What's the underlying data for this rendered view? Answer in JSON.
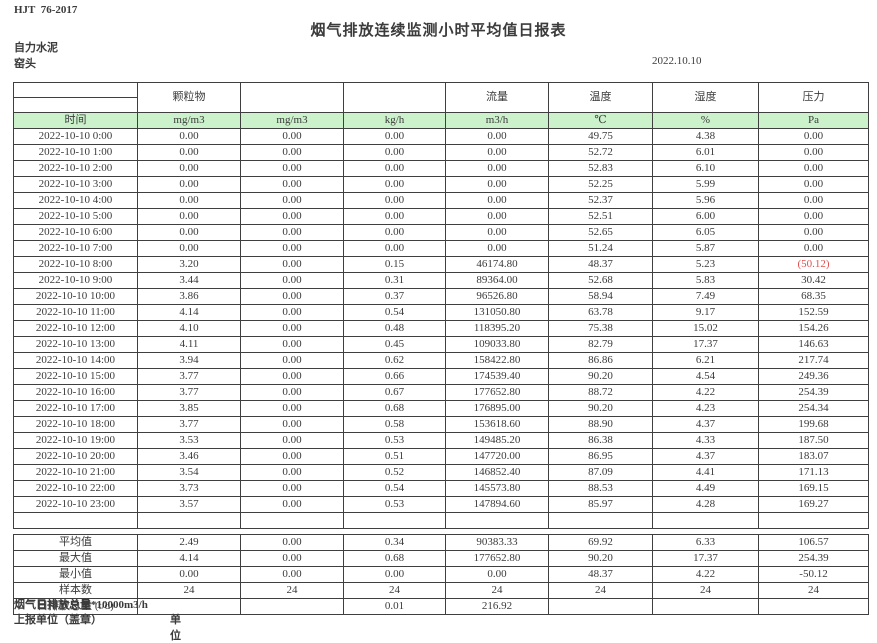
{
  "header": {
    "doc_code": "HJT  76-2017",
    "title": "烟气排放连续监测小时平均值日报表",
    "company": "自力水泥",
    "station": "窑头",
    "date": "2022.10.10"
  },
  "table": {
    "group_headers": {
      "particulate": "颗粒物",
      "flow": "流量",
      "temperature": "温度",
      "humidity": "湿度",
      "pressure": "压力"
    },
    "unit_row": [
      "时间",
      "mg/m3",
      "mg/m3",
      "kg/h",
      "m3/h",
      "℃",
      "%",
      "Pa"
    ],
    "rows": [
      [
        "2022-10-10 0:00",
        "0.00",
        "0.00",
        "0.00",
        "0.00",
        "49.75",
        "4.38",
        "0.00"
      ],
      [
        "2022-10-10 1:00",
        "0.00",
        "0.00",
        "0.00",
        "0.00",
        "52.72",
        "6.01",
        "0.00"
      ],
      [
        "2022-10-10 2:00",
        "0.00",
        "0.00",
        "0.00",
        "0.00",
        "52.83",
        "6.10",
        "0.00"
      ],
      [
        "2022-10-10 3:00",
        "0.00",
        "0.00",
        "0.00",
        "0.00",
        "52.25",
        "5.99",
        "0.00"
      ],
      [
        "2022-10-10 4:00",
        "0.00",
        "0.00",
        "0.00",
        "0.00",
        "52.37",
        "5.96",
        "0.00"
      ],
      [
        "2022-10-10 5:00",
        "0.00",
        "0.00",
        "0.00",
        "0.00",
        "52.51",
        "6.00",
        "0.00"
      ],
      [
        "2022-10-10 6:00",
        "0.00",
        "0.00",
        "0.00",
        "0.00",
        "52.65",
        "6.05",
        "0.00"
      ],
      [
        "2022-10-10 7:00",
        "0.00",
        "0.00",
        "0.00",
        "0.00",
        "51.24",
        "5.87",
        "0.00"
      ],
      [
        "2022-10-10 8:00",
        "3.20",
        "0.00",
        "0.15",
        "46174.80",
        "48.37",
        "5.23",
        "(50.12)"
      ],
      [
        "2022-10-10 9:00",
        "3.44",
        "0.00",
        "0.31",
        "89364.00",
        "52.68",
        "5.83",
        "30.42"
      ],
      [
        "2022-10-10 10:00",
        "3.86",
        "0.00",
        "0.37",
        "96526.80",
        "58.94",
        "7.49",
        "68.35"
      ],
      [
        "2022-10-10 11:00",
        "4.14",
        "0.00",
        "0.54",
        "131050.80",
        "63.78",
        "9.17",
        "152.59"
      ],
      [
        "2022-10-10 12:00",
        "4.10",
        "0.00",
        "0.48",
        "118395.20",
        "75.38",
        "15.02",
        "154.26"
      ],
      [
        "2022-10-10 13:00",
        "4.11",
        "0.00",
        "0.45",
        "109033.80",
        "82.79",
        "17.37",
        "146.63"
      ],
      [
        "2022-10-10 14:00",
        "3.94",
        "0.00",
        "0.62",
        "158422.80",
        "86.86",
        "6.21",
        "217.74"
      ],
      [
        "2022-10-10 15:00",
        "3.77",
        "0.00",
        "0.66",
        "174539.40",
        "90.20",
        "4.54",
        "249.36"
      ],
      [
        "2022-10-10 16:00",
        "3.77",
        "0.00",
        "0.67",
        "177652.80",
        "88.72",
        "4.22",
        "254.39"
      ],
      [
        "2022-10-10 17:00",
        "3.85",
        "0.00",
        "0.68",
        "176895.00",
        "90.20",
        "4.23",
        "254.34"
      ],
      [
        "2022-10-10 18:00",
        "3.77",
        "0.00",
        "0.58",
        "153618.60",
        "88.90",
        "4.37",
        "199.68"
      ],
      [
        "2022-10-10 19:00",
        "3.53",
        "0.00",
        "0.53",
        "149485.20",
        "86.38",
        "4.33",
        "187.50"
      ],
      [
        "2022-10-10 20:00",
        "3.46",
        "0.00",
        "0.51",
        "147720.00",
        "86.95",
        "4.37",
        "183.07"
      ],
      [
        "2022-10-10 21:00",
        "3.54",
        "0.00",
        "0.52",
        "146852.40",
        "87.09",
        "4.41",
        "171.13"
      ],
      [
        "2022-10-10 22:00",
        "3.73",
        "0.00",
        "0.54",
        "145573.80",
        "88.53",
        "4.49",
        "169.15"
      ],
      [
        "2022-10-10 23:00",
        "3.57",
        "0.00",
        "0.53",
        "147894.60",
        "85.97",
        "4.28",
        "169.27"
      ]
    ],
    "summary_rows": [
      [
        "平均值",
        "2.49",
        "0.00",
        "0.34",
        "90383.33",
        "69.92",
        "6.33",
        "106.57"
      ],
      [
        "最大值",
        "4.14",
        "0.00",
        "0.68",
        "177652.80",
        "90.20",
        "17.37",
        "254.39"
      ],
      [
        "最小值",
        "0.00",
        "0.00",
        "0.00",
        "0.00",
        "48.37",
        "4.22",
        "-50.12"
      ],
      [
        "样本数",
        "24",
        "24",
        "24",
        "24",
        "24",
        "24",
        "24"
      ],
      [
        "日排放总量 (t/d)",
        "",
        "",
        "0.01",
        "216.92",
        "",
        "",
        ""
      ]
    ]
  },
  "footer": {
    "note": "烟气日排放总量*10000m3/h",
    "report_unit": "上报单位（盖章）",
    "unit_label": "单位"
  },
  "colors": {
    "unit_row_bg": "#ccf2cc",
    "negative_value": "#e04f4f",
    "grid_line": "#3f3f3f"
  }
}
